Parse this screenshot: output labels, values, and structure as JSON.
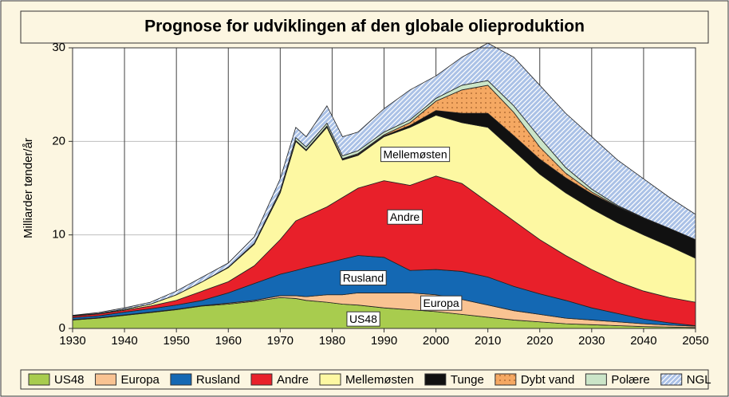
{
  "chart_data": {
    "type": "stacked-area",
    "title": "Prognose for udviklingen af den globale olieproduktion",
    "y_label": "Milliarder tønder/år",
    "x": [
      1930,
      1935,
      1940,
      1945,
      1950,
      1955,
      1960,
      1965,
      1970,
      1973,
      1975,
      1979,
      1982,
      1985,
      1990,
      1995,
      2000,
      2005,
      2010,
      2015,
      2020,
      2025,
      2030,
      2035,
      2040,
      2045,
      2050
    ],
    "xlim": [
      1930,
      2050
    ],
    "xticks": [
      1930,
      1940,
      1950,
      1960,
      1970,
      1980,
      1990,
      2000,
      2010,
      2020,
      2030,
      2040,
      2050
    ],
    "ylim": [
      0,
      30
    ],
    "yticks": [
      0,
      10,
      20,
      30
    ],
    "grid": true,
    "legend": "bottom",
    "series": [
      {
        "name": "US48",
        "color": "#a8cc4e",
        "values": [
          0.9,
          1.1,
          1.4,
          1.7,
          2.0,
          2.4,
          2.6,
          2.9,
          3.3,
          3.2,
          3.0,
          2.8,
          2.6,
          2.5,
          2.2,
          2.0,
          1.8,
          1.5,
          1.2,
          0.9,
          0.7,
          0.5,
          0.4,
          0.3,
          0.2,
          0.15,
          0.1
        ]
      },
      {
        "name": "Europa",
        "color": "#f9c392",
        "values": [
          0.05,
          0.05,
          0.05,
          0.05,
          0.05,
          0.05,
          0.1,
          0.1,
          0.2,
          0.3,
          0.4,
          0.8,
          1.0,
          1.3,
          1.6,
          1.8,
          1.8,
          1.6,
          1.3,
          1.0,
          0.8,
          0.6,
          0.5,
          0.4,
          0.3,
          0.2,
          0.15
        ]
      },
      {
        "name": "Rusland",
        "color": "#1468b3",
        "values": [
          0.2,
          0.2,
          0.3,
          0.35,
          0.45,
          0.55,
          1.1,
          1.8,
          2.3,
          2.7,
          3.1,
          3.4,
          3.8,
          4.0,
          3.8,
          2.4,
          2.7,
          3.0,
          3.0,
          2.6,
          2.2,
          1.9,
          1.3,
          0.9,
          0.5,
          0.25,
          0.05
        ]
      },
      {
        "name": "Andre",
        "color": "#e8202a",
        "values": [
          0.15,
          0.2,
          0.2,
          0.3,
          0.5,
          1.0,
          1.2,
          1.9,
          3.7,
          5.3,
          5.5,
          6.0,
          6.6,
          7.2,
          8.2,
          9.1,
          10.0,
          9.4,
          8.0,
          7.0,
          5.8,
          4.8,
          4.1,
          3.4,
          3.0,
          2.7,
          2.5
        ]
      },
      {
        "name": "Mellemøsten",
        "color": "#fdf8a2",
        "values": [
          0.05,
          0.05,
          0.1,
          0.2,
          0.6,
          1.0,
          1.5,
          2.3,
          5.0,
          8.5,
          7.0,
          8.5,
          4.0,
          3.5,
          4.7,
          6.2,
          6.5,
          6.5,
          8.0,
          7.5,
          7.0,
          6.7,
          6.5,
          6.3,
          6.0,
          5.5,
          4.7
        ]
      },
      {
        "name": "Tunge",
        "color": "#111111",
        "values": [
          0,
          0,
          0,
          0,
          0,
          0,
          0,
          0,
          0.05,
          0.1,
          0.1,
          0.1,
          0.1,
          0.1,
          0.1,
          0.2,
          0.5,
          1.0,
          1.5,
          1.6,
          1.6,
          1.6,
          1.6,
          1.7,
          1.8,
          1.9,
          2.0
        ]
      },
      {
        "name": "Dybt vand",
        "color": "#f5a862",
        "pattern": "dots",
        "values": [
          0,
          0,
          0,
          0,
          0,
          0,
          0,
          0,
          0,
          0,
          0,
          0.05,
          0.05,
          0.1,
          0.1,
          0.3,
          1.0,
          2.5,
          3.0,
          2.5,
          1.3,
          0.5,
          0.2,
          0.05,
          0,
          0,
          0
        ]
      },
      {
        "name": "Polære",
        "color": "#cbe5c8",
        "values": [
          0,
          0,
          0,
          0,
          0,
          0,
          0.05,
          0.1,
          0.2,
          0.3,
          0.3,
          0.3,
          0.3,
          0.3,
          0.3,
          0.3,
          0.3,
          0.5,
          0.5,
          0.7,
          1.0,
          0.6,
          0.3,
          0.1,
          0.05,
          0,
          0
        ]
      },
      {
        "name": "NGL",
        "color": "#aac1e6",
        "pattern": "hatch",
        "values": [
          0.05,
          0.1,
          0.15,
          0.2,
          0.4,
          0.5,
          0.45,
          0.7,
          1.25,
          1.1,
          1.1,
          1.85,
          2.05,
          2.0,
          2.5,
          3.2,
          2.4,
          3.0,
          4.0,
          5.2,
          5.6,
          5.8,
          5.6,
          4.85,
          4.15,
          3.3,
          2.7
        ]
      }
    ],
    "area_labels": [
      {
        "series": 4,
        "x": 1996,
        "y": 18.5
      },
      {
        "series": 3,
        "x": 1994,
        "y": 11.8
      },
      {
        "series": 2,
        "x": 1986,
        "y": 5.3
      },
      {
        "series": 1,
        "x": 2001,
        "y": 2.6
      },
      {
        "series": 0,
        "x": 1986,
        "y": 0.9
      }
    ]
  }
}
